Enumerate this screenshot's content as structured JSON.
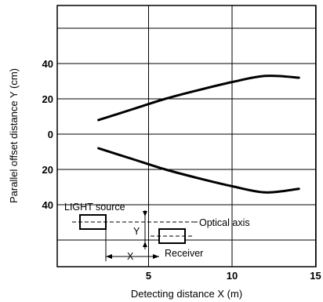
{
  "chart_data": {
    "type": "line",
    "xlabel": "Detecting distance X (m)",
    "ylabel": "Parallel offset distance Y (cm)",
    "xlim": [
      0,
      15
    ],
    "x_ticks": [
      5,
      10,
      15
    ],
    "y_ticks": [
      {
        "value": 40,
        "label": "40"
      },
      {
        "value": 20,
        "label": "20"
      },
      {
        "value": 0,
        "label": "0"
      },
      {
        "value": -20,
        "label": "20"
      },
      {
        "value": -40,
        "label": "40"
      }
    ],
    "grid": true,
    "series": [
      {
        "values": [
          {
            "x": 2,
            "y": 8
          },
          {
            "x": 4,
            "y": 14
          },
          {
            "x": 6,
            "y": 20
          },
          {
            "x": 8,
            "y": 25
          },
          {
            "x": 10,
            "y": 29.5
          },
          {
            "x": 12,
            "y": 33
          },
          {
            "x": 14,
            "y": 32
          }
        ]
      },
      {
        "values": [
          {
            "x": 2,
            "y": -8
          },
          {
            "x": 4,
            "y": -14
          },
          {
            "x": 6,
            "y": -20
          },
          {
            "x": 8,
            "y": -25
          },
          {
            "x": 10,
            "y": -29.5
          },
          {
            "x": 12,
            "y": -33
          },
          {
            "x": 14,
            "y": -31
          }
        ]
      }
    ],
    "annotations": {
      "light_source": "LIGHT source",
      "optical_axis": "Optical axis",
      "receiver": "Receiver",
      "y_marker": "Y",
      "x_marker": "X"
    }
  }
}
